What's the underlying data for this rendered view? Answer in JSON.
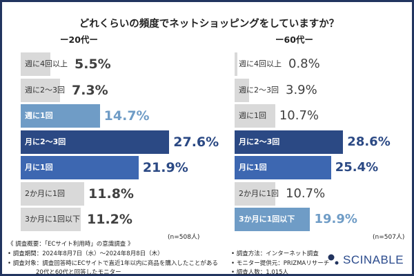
{
  "title": "どれくらいの頻度でネットショッピングをしていますか？",
  "colors": {
    "gray": "#d9d9d9",
    "light": "#6f9cc6",
    "mid": "#3d67b1",
    "dark": "#2b4984",
    "text": "#404040",
    "frame": "#22345f"
  },
  "chart_data": [
    {
      "type": "bar",
      "orientation": "horizontal",
      "title": "ー20代ー",
      "n_label": "(n=508人)",
      "unit": "%",
      "categories": [
        "週に4回以上",
        "週に2〜3回",
        "週に1回",
        "月に2〜3回",
        "月に1回",
        "2か月に1回",
        "3か月に1回以下"
      ],
      "values": [
        5.5,
        7.3,
        14.7,
        27.6,
        21.9,
        11.8,
        11.2
      ],
      "value_labels": [
        "5.5%",
        "7.3%",
        "14.7%",
        "27.6%",
        "21.9%",
        "11.8%",
        "11.2%"
      ],
      "bar_colors": [
        "gray",
        "gray",
        "light",
        "dark",
        "mid",
        "gray",
        "gray"
      ]
    },
    {
      "type": "bar",
      "orientation": "horizontal",
      "title": "ー60代ー",
      "n_label": "(n=507人)",
      "unit": "%",
      "categories": [
        "週に4回以上",
        "週に2〜3回",
        "週に1回",
        "月に2〜3回",
        "月に1回",
        "2か月に1回",
        "3か月に1回以下"
      ],
      "values": [
        0.8,
        3.9,
        10.7,
        28.6,
        25.4,
        10.7,
        19.9
      ],
      "value_labels": [
        "0.8%",
        "3.9%",
        "10.7%",
        "28.6%",
        "25.4%",
        "10.7%",
        "19.9%"
      ],
      "bar_colors": [
        "gray",
        "gray",
        "gray",
        "dark",
        "mid",
        "gray",
        "light"
      ]
    }
  ],
  "footer": {
    "overview": "《 調査概要：「ECサイト利用時」の意識調査 》",
    "period": "• 調査期間：2024年8月7日（水）〜2024年8月8日（木）",
    "target1": "• 調査対象：調査回答時にECサイトで直近1年以内に商品を購入したことがある",
    "target2": "20代と60代と回答したモニター",
    "method": "• 調査方法：インターネット調査",
    "provider": "• モニター提供元：PRIZMAリサーチ",
    "count": "• 調査人数：1,015人"
  },
  "logo": "SCINABLE"
}
